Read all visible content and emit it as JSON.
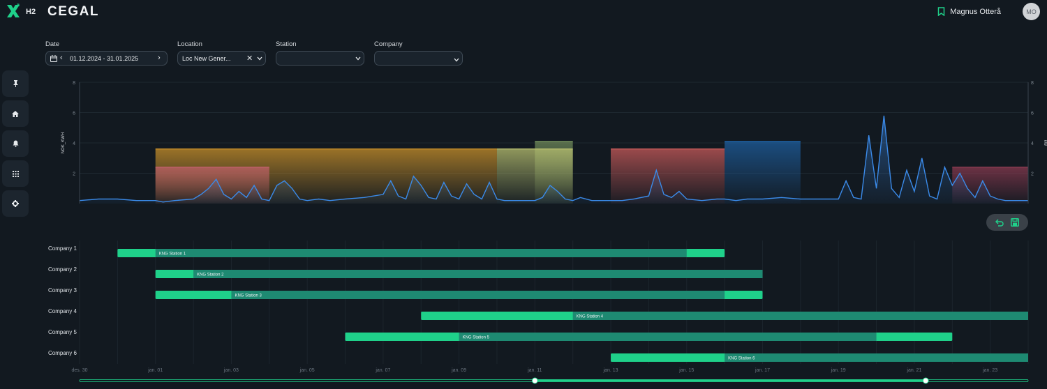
{
  "header": {
    "app_suffix": "H2",
    "brand": "CEGAL",
    "user_name": "Magnus Otterå",
    "user_initials": "MO"
  },
  "filters": {
    "date": {
      "label": "Date",
      "value": "01.12.2024 - 31.01.2025"
    },
    "location": {
      "label": "Location",
      "value": "Loc New Gener..."
    },
    "station": {
      "label": "Station",
      "value": ""
    },
    "company": {
      "label": "Company",
      "value": ""
    }
  },
  "sidebar": {
    "items": [
      "pin-icon",
      "home-icon",
      "bell-icon",
      "grid-icon",
      "gear-icon"
    ]
  },
  "chart_data": {
    "type": "area",
    "ylabel_left": "NOK_KWH",
    "ylabel_right": "kW",
    "y_ticks": [
      "2",
      "4",
      "6",
      "8"
    ],
    "ylim": [
      0,
      8
    ],
    "x_ticks": [
      "des. 30",
      "jan. 01",
      "jan. 03",
      "jan. 05",
      "jan. 07",
      "jan. 09",
      "jan. 11",
      "jan. 13",
      "jan. 15",
      "jan. 17",
      "jan. 19",
      "jan. 21",
      "jan. 23"
    ],
    "x_range_days": [
      0,
      25
    ],
    "capacity_blocks": [
      {
        "start": 2.0,
        "end": 11.0,
        "value": 3.6,
        "color": "#c8902a"
      },
      {
        "start": 2.0,
        "end": 5.0,
        "value": 2.4,
        "color": "#c0606a"
      },
      {
        "start": 12.0,
        "end": 13.0,
        "value": 4.1,
        "color": "#6f8a5a"
      },
      {
        "start": 11.0,
        "end": 13.0,
        "value": 3.6,
        "color": "#b8c070"
      },
      {
        "start": 14.0,
        "end": 17.0,
        "value": 3.6,
        "color": "#c85a5a"
      },
      {
        "start": 17.0,
        "end": 19.0,
        "value": 4.1,
        "color": "#1e5fa0"
      },
      {
        "start": 23.0,
        "end": 25.0,
        "value": 2.4,
        "color": "#8a3a50"
      }
    ],
    "series": [
      {
        "name": "usage",
        "color": "#3b8bea",
        "x": [
          0,
          0.5,
          1,
          1.5,
          2,
          2.2,
          2.5,
          3,
          3.2,
          3.4,
          3.6,
          3.8,
          4,
          4.2,
          4.4,
          4.6,
          4.8,
          5,
          5.2,
          5.4,
          5.6,
          5.8,
          6,
          6.3,
          6.6,
          7,
          7.5,
          8,
          8.2,
          8.4,
          8.6,
          8.8,
          9,
          9.2,
          9.4,
          9.6,
          9.8,
          10,
          10.2,
          10.4,
          10.6,
          10.8,
          11,
          11.2,
          11.5,
          12,
          12.2,
          12.4,
          12.6,
          12.8,
          13,
          13.2,
          13.5,
          14,
          14.3,
          14.6,
          15,
          15.2,
          15.4,
          15.6,
          15.8,
          16,
          16.4,
          16.8,
          17,
          17.3,
          17.6,
          18,
          18.5,
          19,
          19.5,
          20,
          20.2,
          20.4,
          20.6,
          20.8,
          21,
          21.2,
          21.4,
          21.6,
          21.8,
          22,
          22.2,
          22.4,
          22.6,
          22.8,
          23,
          23.2,
          23.4,
          23.6,
          23.8,
          24,
          24.2,
          24.4,
          24.6,
          24.8,
          25
        ],
        "values": [
          0.2,
          0.3,
          0.3,
          0.2,
          0.2,
          0.1,
          0.2,
          0.3,
          0.6,
          1.0,
          1.6,
          0.6,
          0.3,
          0.8,
          0.4,
          1.2,
          0.3,
          0.2,
          1.2,
          1.5,
          1.0,
          0.3,
          0.2,
          0.3,
          0.2,
          0.3,
          0.4,
          0.6,
          1.5,
          0.5,
          0.3,
          1.8,
          1.2,
          0.4,
          0.3,
          1.4,
          0.5,
          0.3,
          1.3,
          0.6,
          0.3,
          1.4,
          0.3,
          0.2,
          0.2,
          0.2,
          0.4,
          1.2,
          0.8,
          0.3,
          0.2,
          0.4,
          0.2,
          0.2,
          0.2,
          0.3,
          0.5,
          2.2,
          0.6,
          0.4,
          0.8,
          0.3,
          0.2,
          0.3,
          0.3,
          0.2,
          0.3,
          0.3,
          0.4,
          0.3,
          0.3,
          0.3,
          1.5,
          0.4,
          0.3,
          4.5,
          1.0,
          5.8,
          1.0,
          0.4,
          2.2,
          0.8,
          3.0,
          0.5,
          0.3,
          2.4,
          1.2,
          2.0,
          1.0,
          0.4,
          1.5,
          0.5,
          0.3,
          0.2,
          0.2,
          0.2,
          0.2
        ]
      }
    ]
  },
  "gantt": {
    "rows": [
      {
        "company": "Company 1",
        "station": "KNG Station 1",
        "start": 1.0,
        "split": 2.0,
        "end_teal": 16.0,
        "end": 17.0
      },
      {
        "company": "Company 2",
        "station": "KNG Station 2",
        "start": 2.0,
        "split": 3.0,
        "end_teal": 18.0,
        "end": 18.0
      },
      {
        "company": "Company 3",
        "station": "KNG Station 3",
        "start": 2.0,
        "split": 4.0,
        "end_teal": 17.0,
        "end": 18.0
      },
      {
        "company": "Company 4",
        "station": "KNG Station 4",
        "start": 9.0,
        "split": 13.0,
        "end_teal": 25.0,
        "end": 25.0
      },
      {
        "company": "Company 5",
        "station": "KNG Station 5",
        "start": 7.0,
        "split": 10.0,
        "end_teal": 21.0,
        "end": 23.0
      },
      {
        "company": "Company 6",
        "station": "KNG Station 6",
        "start": 14.0,
        "split": 17.0,
        "end_teal": 25.0,
        "end": 25.0
      }
    ],
    "x_ticks": [
      "des. 30",
      "jan. 01",
      "jan. 03",
      "jan. 05",
      "jan. 07",
      "jan. 09",
      "jan. 11",
      "jan. 13",
      "jan. 15",
      "jan. 17",
      "jan. 19",
      "jan. 21",
      "jan. 23"
    ],
    "slider": {
      "start": 12.0,
      "end": 22.3,
      "min": 0,
      "max": 25
    }
  },
  "colors": {
    "accent": "#1fd18a",
    "teal": "#1e8a72",
    "series": "#3b8bea"
  }
}
